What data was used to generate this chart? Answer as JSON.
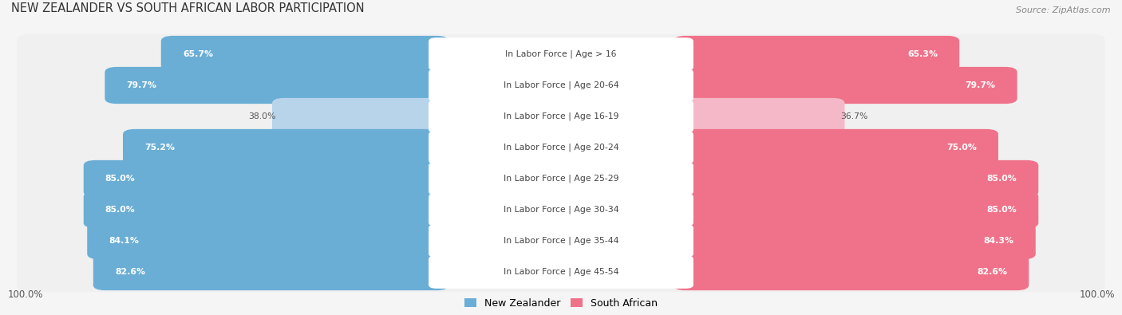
{
  "title": "NEW ZEALANDER VS SOUTH AFRICAN LABOR PARTICIPATION",
  "source": "Source: ZipAtlas.com",
  "categories": [
    "In Labor Force | Age > 16",
    "In Labor Force | Age 20-64",
    "In Labor Force | Age 16-19",
    "In Labor Force | Age 20-24",
    "In Labor Force | Age 25-29",
    "In Labor Force | Age 30-34",
    "In Labor Force | Age 35-44",
    "In Labor Force | Age 45-54"
  ],
  "nz_values": [
    65.7,
    79.7,
    38.0,
    75.2,
    85.0,
    85.0,
    84.1,
    82.6
  ],
  "sa_values": [
    65.3,
    79.7,
    36.7,
    75.0,
    85.0,
    85.0,
    84.3,
    82.6
  ],
  "nz_color_full": "#6aaed6",
  "nz_color_light": "#b8d4eb",
  "sa_color_full": "#f0728a",
  "sa_color_light": "#f5b8c8",
  "bg_color": "#e8e8e8",
  "row_bg": "#f0f0f0",
  "max_value": 100.0,
  "legend_nz": "New Zealander",
  "legend_sa": "South African",
  "threshold": 55.0,
  "fig_bg": "#f5f5f5"
}
